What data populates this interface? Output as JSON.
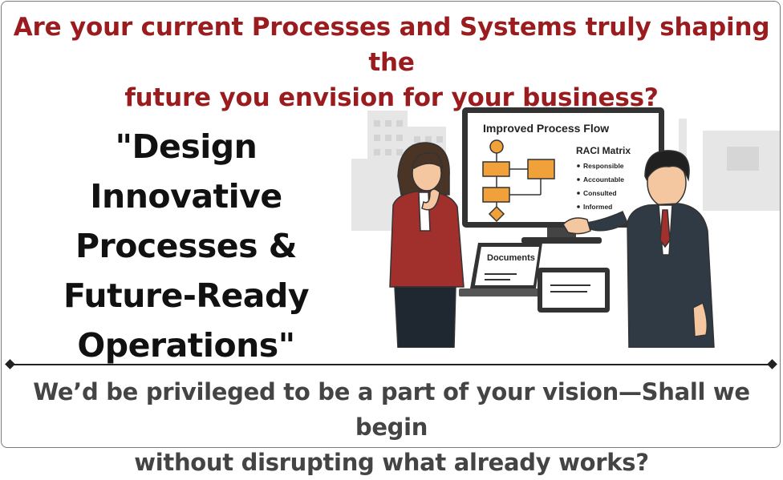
{
  "headline": {
    "line1": "Are your current Processes and Systems truly shaping the",
    "line2": "future you envision for your business?"
  },
  "quote": {
    "line1": "\"Design Innovative",
    "line2": "Processes &",
    "line3": "Future-Ready",
    "line4": "Operations\""
  },
  "illustration": {
    "monitor_title": "Improved Process Flow",
    "raci_title": "RACI Matrix",
    "raci_items": [
      "Responsible",
      "Accountable",
      "Consulted",
      "Informed"
    ],
    "laptop_label": "Documents"
  },
  "footer": {
    "line1": "We’d be privileged to be a part of your vision—Shall we begin",
    "line2": "without disrupting what already works?"
  },
  "colors": {
    "headline": "#9b1c1f",
    "quote": "#111111",
    "footer": "#444444",
    "process_box": "#f0a13a"
  }
}
